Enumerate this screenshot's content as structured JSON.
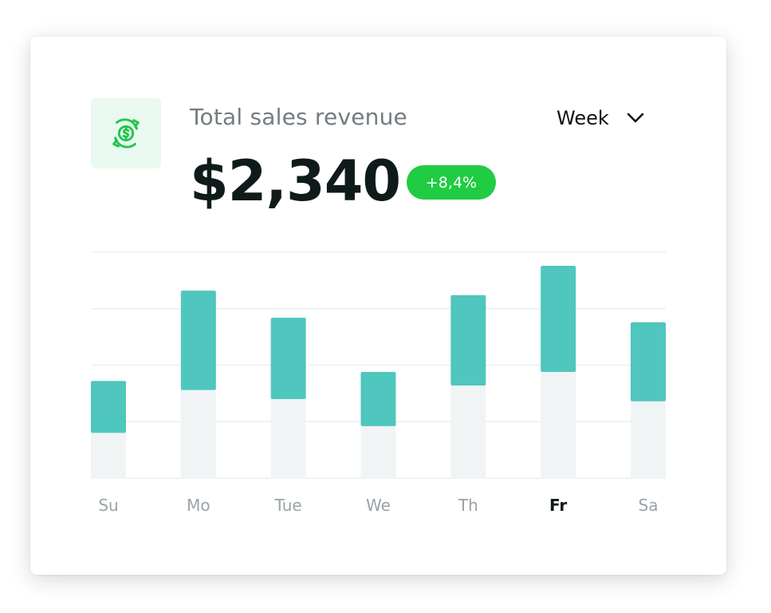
{
  "header": {
    "title": "Total sales revenue",
    "value": "$2,340",
    "change_badge": "+8,4%",
    "period_select": "Week",
    "icon": "dollar-refresh-icon"
  },
  "colors": {
    "bar_top": "#4fc6be",
    "bar_base": "#f1f4f5",
    "badge": "#20cc42",
    "icon": "#22c54a",
    "label_muted": "#9aa3a8",
    "label_active": "#0f1b1a"
  },
  "chart_data": {
    "type": "bar",
    "stacked": true,
    "categories": [
      "Su",
      "Mo",
      "Tue",
      "We",
      "Th",
      "Fr",
      "Sa"
    ],
    "series": [
      {
        "values": [
          0.2,
          0.39,
          0.35,
          0.23,
          0.41,
          0.47,
          0.34
        ]
      },
      {
        "values": [
          0.23,
          0.44,
          0.36,
          0.24,
          0.4,
          0.47,
          0.35
        ]
      }
    ],
    "ylim": [
      0,
      1
    ],
    "grid": true,
    "active_category": "Fr"
  }
}
